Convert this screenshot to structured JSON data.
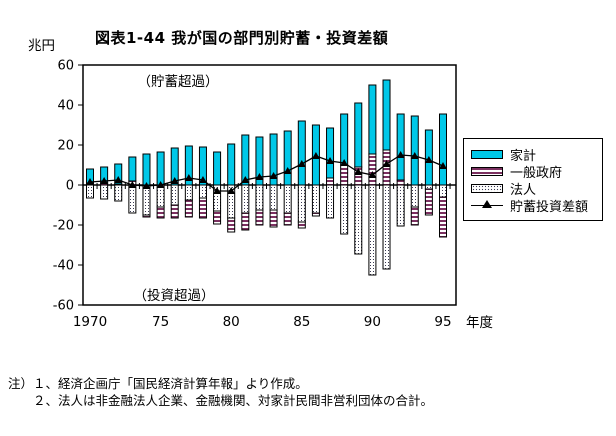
{
  "title": "図表1-44 我が国の部門別貯蓄・投資差額",
  "unit_label": "兆円",
  "x_axis_unit": "年度",
  "annotations": {
    "top": "（貯蓄超過）",
    "bottom": "（投資超過）"
  },
  "legend": {
    "items": [
      {
        "key": "household",
        "label": "家計"
      },
      {
        "key": "government",
        "label": "一般政府"
      },
      {
        "key": "corporate",
        "label": "法人"
      },
      {
        "key": "balance",
        "label": "貯蓄投資差額"
      }
    ]
  },
  "notes": {
    "line1": "注）１、経済企画庁「国民経済計算年報」より作成。",
    "line2": "２、法人は非金融法人企業、金融機関、対家計民間非営利団体の合計。"
  },
  "colors": {
    "household_fill": "#00c8e8",
    "government_stripe": "#7b3060",
    "corporate_dot": "#3a3a52",
    "line": "#000000",
    "frame": "#000000"
  },
  "chart_data": {
    "type": "bar",
    "stacked": true,
    "grid": false,
    "legend_position": "right",
    "title": "図表1-44 我が国の部門別貯蓄・投資差額",
    "xlabel": "年度",
    "ylabel": "兆円",
    "ylim": [
      -60,
      60
    ],
    "y_ticks": [
      60,
      40,
      20,
      0,
      -20,
      -40,
      -60
    ],
    "x_tick_labels": [
      "1970",
      "75",
      "80",
      "85",
      "90",
      "95"
    ],
    "x_tick_years": [
      1970,
      1975,
      1980,
      1985,
      1990,
      1995
    ],
    "years": [
      1970,
      1971,
      1972,
      1973,
      1974,
      1975,
      1976,
      1977,
      1978,
      1979,
      1980,
      1981,
      1982,
      1983,
      1984,
      1985,
      1986,
      1987,
      1988,
      1989,
      1990,
      1991,
      1992,
      1993,
      1994,
      1995
    ],
    "series": [
      {
        "name": "家計",
        "role": "bar",
        "values": [
          7,
          8,
          10,
          12,
          15.5,
          16.5,
          18.5,
          19.5,
          19,
          16.5,
          20.5,
          25,
          24,
          25.5,
          27,
          32,
          30,
          25,
          25.5,
          32,
          34.5,
          35,
          33,
          34.5,
          27.5,
          35.5
        ]
      },
      {
        "name": "一般政府",
        "role": "bar",
        "values": [
          1,
          1,
          0.5,
          2,
          -1,
          -5.5,
          -6.5,
          -8.5,
          -10,
          -6.5,
          -7,
          -8.5,
          -7.5,
          -8.5,
          -6,
          -3,
          -1.5,
          3.5,
          10,
          9,
          15.5,
          17.5,
          2.5,
          -9,
          -13,
          -20
        ]
      },
      {
        "name": "法人",
        "role": "bar",
        "values": [
          -6.5,
          -7,
          -8,
          -14,
          -15,
          -11,
          -10,
          -7.5,
          -6.5,
          -13,
          -16.5,
          -14,
          -12.5,
          -12.5,
          -14,
          -18.5,
          -14,
          -16.5,
          -24.5,
          -34.5,
          -45,
          -42,
          -20.5,
          -11,
          -2,
          -6
        ]
      },
      {
        "name": "貯蓄投資差額",
        "role": "line",
        "values": [
          1.5,
          2,
          2.5,
          0,
          -0.5,
          0,
          2,
          3.5,
          2.5,
          -3,
          -3,
          2.5,
          4,
          4.5,
          7,
          10.5,
          14.5,
          12,
          11,
          6.5,
          5,
          10.5,
          15,
          14.5,
          12.5,
          9.5
        ]
      }
    ]
  }
}
